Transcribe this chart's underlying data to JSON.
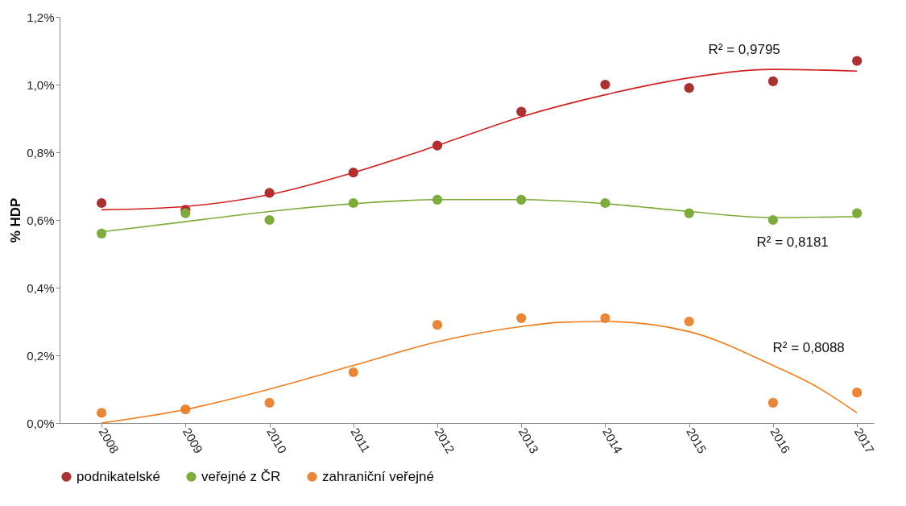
{
  "chart_data": {
    "type": "scatter",
    "ylabel": "% HDP",
    "xlim": [
      2007.5,
      2017.2
    ],
    "xticks": [
      2008,
      2009,
      2010,
      2011,
      2012,
      2013,
      2014,
      2015,
      2016,
      2017
    ],
    "ylim": [
      0,
      1.2
    ],
    "yticks": [
      {
        "value": 0,
        "label": "0,0%"
      },
      {
        "value": 0.2,
        "label": "0,2%"
      },
      {
        "value": 0.4,
        "label": "0,4%"
      },
      {
        "value": 0.6,
        "label": "0,6%"
      },
      {
        "value": 0.8,
        "label": "0,8%"
      },
      {
        "value": 1.0,
        "label": "1,0%"
      },
      {
        "value": 1.2,
        "label": "1,2%"
      }
    ],
    "x": [
      2008,
      2009,
      2010,
      2011,
      2012,
      2013,
      2014,
      2015,
      2016,
      2017
    ],
    "grid": false,
    "legend": "bottom",
    "series": [
      {
        "name": "podnikatelské",
        "marker": "circle",
        "color": "#a93232",
        "values": [
          0.65,
          0.63,
          0.68,
          0.74,
          0.82,
          0.92,
          1.0,
          0.99,
          1.01,
          1.07
        ]
      },
      {
        "name": "veřejné z ČR",
        "marker": "circle",
        "color": "#7faa3c",
        "values": [
          0.56,
          0.62,
          0.6,
          0.65,
          0.66,
          0.66,
          0.65,
          0.62,
          0.6,
          0.62
        ]
      },
      {
        "name": "zahraniční veřejné",
        "marker": "circle",
        "color": "#e8873a",
        "values": [
          0.03,
          0.04,
          0.06,
          0.15,
          0.29,
          0.31,
          0.31,
          0.3,
          0.06,
          0.09
        ]
      },
      {
        "type": "line",
        "color": "#d02020",
        "values": [
          0.63,
          0.64,
          0.675,
          0.74,
          0.82,
          0.905,
          0.97,
          1.02,
          1.045,
          1.04
        ]
      },
      {
        "type": "line",
        "color": "#7faa3c",
        "values": [
          0.565,
          0.595,
          0.625,
          0.648,
          0.66,
          0.66,
          0.648,
          0.625,
          0.607,
          0.61
        ]
      },
      {
        "type": "line",
        "color": "#f07d1e",
        "x": [
          2008,
          2009,
          2010,
          2011,
          2012,
          2013,
          2013.5,
          2014,
          2015,
          2016,
          2016.5,
          2017
        ],
        "values": [
          0.0,
          0.04,
          0.1,
          0.17,
          0.24,
          0.285,
          0.298,
          0.3,
          0.27,
          0.17,
          0.11,
          0.03
        ]
      }
    ],
    "annotations": [
      "R² = 0,9795",
      "R² = 0,8181",
      "R² = 0,8088"
    ]
  }
}
